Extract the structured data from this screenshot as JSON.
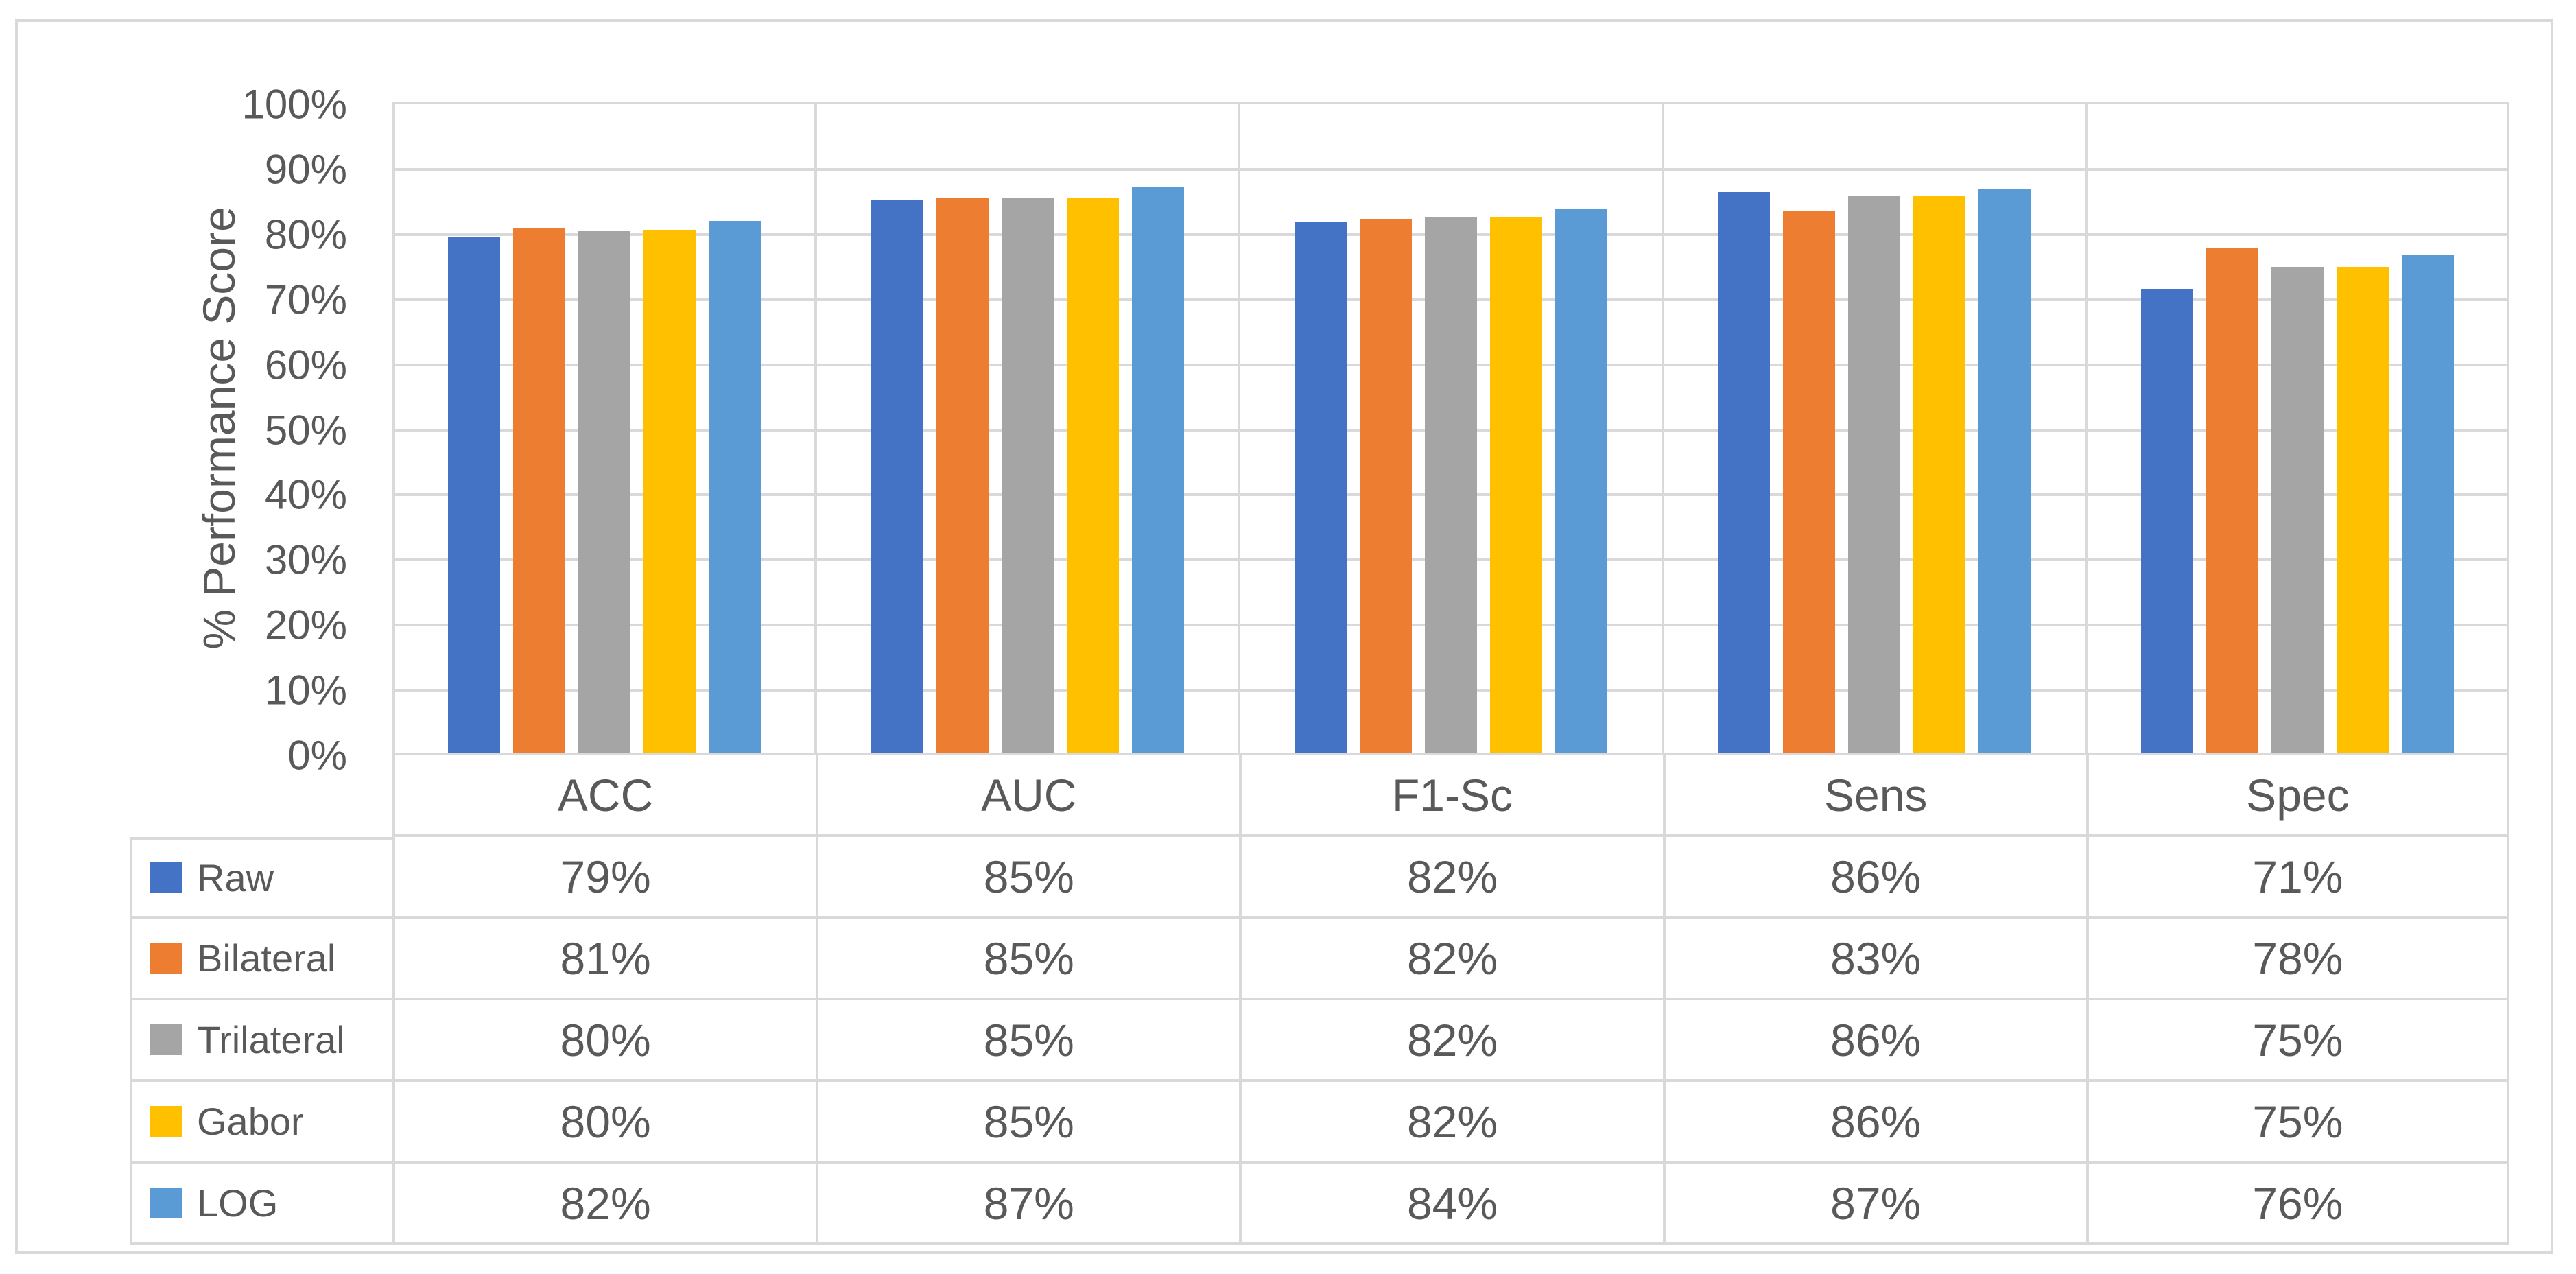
{
  "figure": {
    "background": "#FFFFFF",
    "frame_border_color": "#D9D9D9",
    "grid_color": "#D9D9D9",
    "text_color": "#595959"
  },
  "chart_data": {
    "type": "bar",
    "title": "",
    "xlabel": "",
    "ylabel": "% Performance Score",
    "categories": [
      "ACC",
      "AUC",
      "F1-Sc",
      "Sens",
      "Spec"
    ],
    "series": [
      {
        "name": "Raw",
        "color": "#4472C4",
        "values": [
          79,
          85,
          82,
          86,
          71
        ],
        "table_labels": [
          "79%",
          "85%",
          "82%",
          "86%",
          "71%"
        ],
        "bar_heights": [
          79.2,
          84.9,
          81.5,
          86.1,
          71.2
        ]
      },
      {
        "name": "Bilateral",
        "color": "#ED7D31",
        "values": [
          81,
          85,
          82,
          83,
          78
        ],
        "table_labels": [
          "81%",
          "85%",
          "82%",
          "83%",
          "78%"
        ],
        "bar_heights": [
          80.6,
          85.3,
          82.0,
          83.1,
          77.6
        ]
      },
      {
        "name": "Trilateral",
        "color": "#A5A5A5",
        "values": [
          80,
          85,
          82,
          86,
          75
        ],
        "table_labels": [
          "80%",
          "85%",
          "82%",
          "86%",
          "75%"
        ],
        "bar_heights": [
          80.2,
          85.3,
          82.2,
          85.5,
          74.6
        ]
      },
      {
        "name": "Gabor",
        "color": "#FFC000",
        "values": [
          80,
          85,
          82,
          86,
          75
        ],
        "table_labels": [
          "80%",
          "85%",
          "82%",
          "86%",
          "75%"
        ],
        "bar_heights": [
          80.3,
          85.3,
          82.2,
          85.5,
          74.6
        ]
      },
      {
        "name": "LOG",
        "color": "#5B9BD5",
        "values": [
          82,
          87,
          84,
          87,
          76
        ],
        "table_labels": [
          "82%",
          "87%",
          "84%",
          "87%",
          "76%"
        ],
        "bar_heights": [
          81.7,
          86.9,
          83.6,
          86.5,
          76.4
        ]
      }
    ],
    "y_axis": {
      "min": 0,
      "max": 100,
      "step": 10,
      "tick_labels": [
        "0%",
        "10%",
        "20%",
        "30%",
        "40%",
        "50%",
        "60%",
        "70%",
        "80%",
        "90%",
        "100%"
      ]
    },
    "ylim": [
      0,
      100
    ],
    "gridlines": true,
    "legend_position": "data-table-left-column"
  }
}
